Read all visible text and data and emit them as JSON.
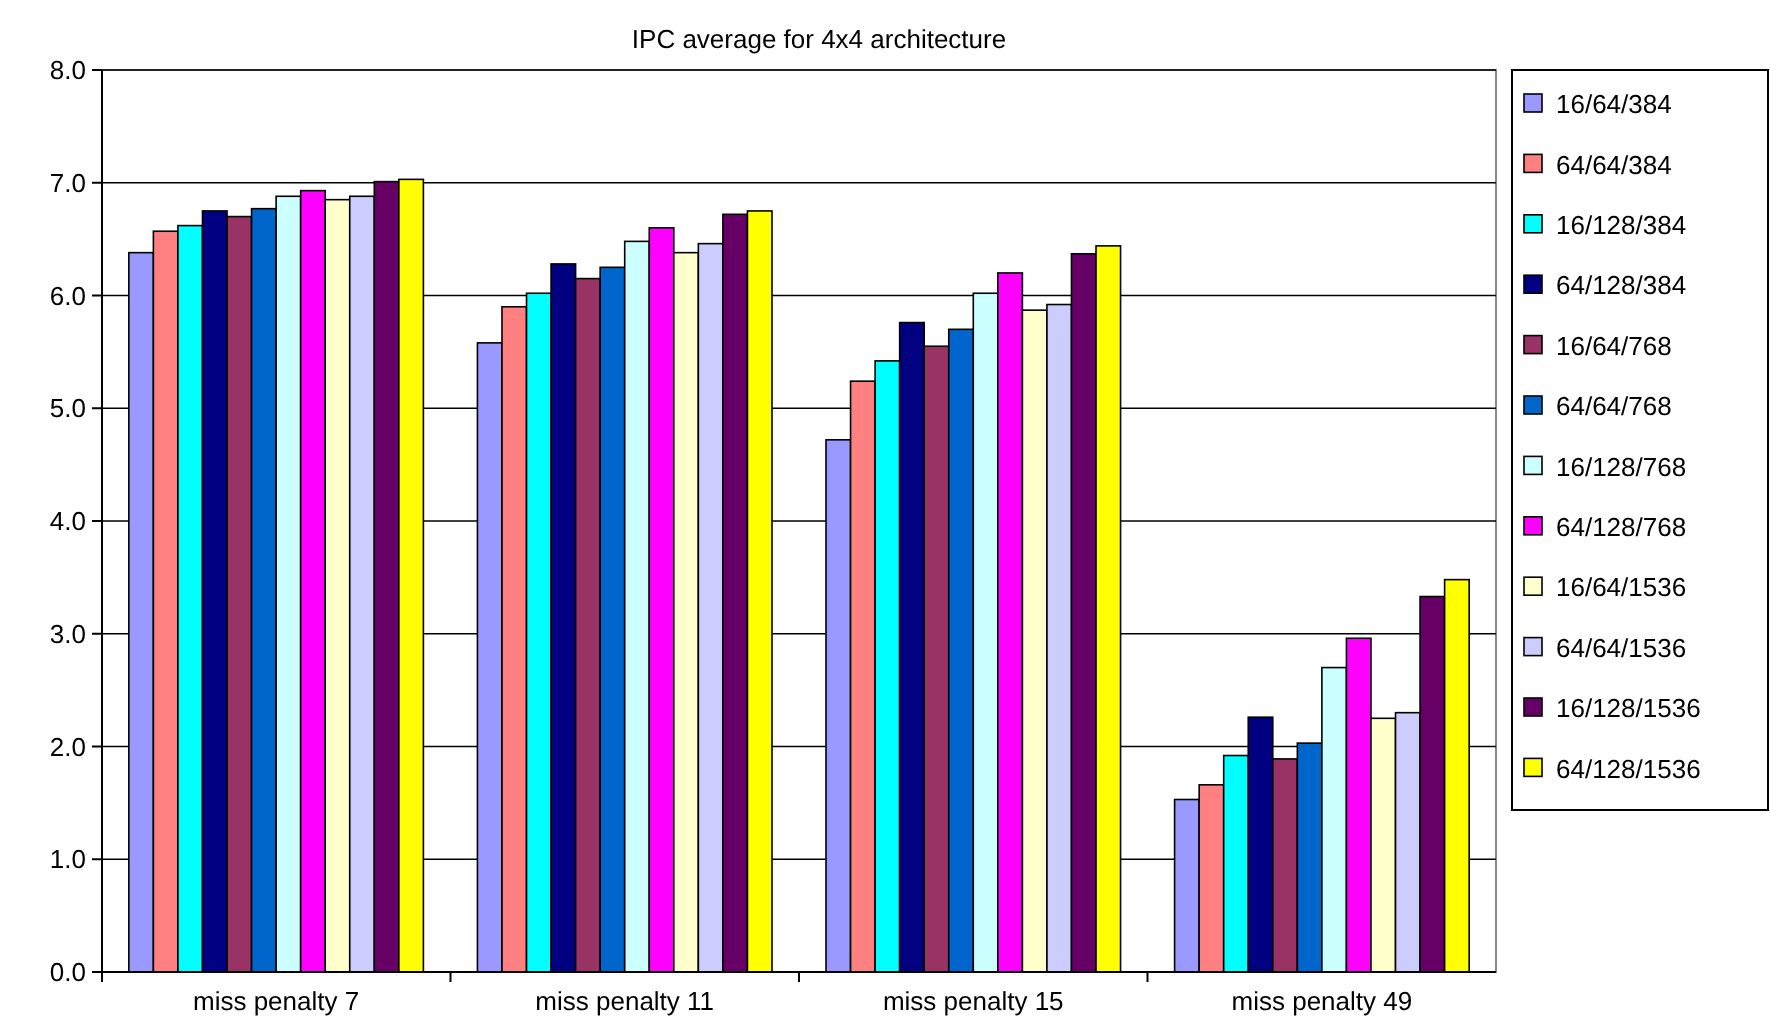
{
  "chart_data": {
    "type": "bar",
    "title": "IPC average for 4x4 architecture",
    "categories": [
      "miss penalty 7",
      "miss penalty 11",
      "miss penalty 15",
      "miss penalty 49"
    ],
    "series": [
      {
        "name": "16/64/384",
        "color": "#9999ff",
        "values": [
          6.38,
          5.58,
          4.72,
          1.53
        ]
      },
      {
        "name": "64/64/384",
        "color": "#ff8080",
        "values": [
          6.57,
          5.9,
          5.24,
          1.66
        ]
      },
      {
        "name": "16/128/384",
        "color": "#00ffff",
        "values": [
          6.62,
          6.02,
          5.42,
          1.92
        ]
      },
      {
        "name": "64/128/384",
        "color": "#000080",
        "values": [
          6.75,
          6.28,
          5.76,
          2.26
        ]
      },
      {
        "name": "16/64/768",
        "color": "#993366",
        "values": [
          6.7,
          6.15,
          5.55,
          1.89
        ]
      },
      {
        "name": "64/64/768",
        "color": "#0066cc",
        "values": [
          6.77,
          6.25,
          5.7,
          2.03
        ]
      },
      {
        "name": "16/128/768",
        "color": "#ccffff",
        "values": [
          6.88,
          6.48,
          6.02,
          2.7
        ]
      },
      {
        "name": "64/128/768",
        "color": "#ff00ff",
        "values": [
          6.93,
          6.6,
          6.2,
          2.96
        ]
      },
      {
        "name": "16/64/1536",
        "color": "#ffffcc",
        "values": [
          6.85,
          6.38,
          5.87,
          2.25
        ]
      },
      {
        "name": "64/64/1536",
        "color": "#ccccff",
        "values": [
          6.88,
          6.46,
          5.92,
          2.3
        ]
      },
      {
        "name": "16/128/1536",
        "color": "#660066",
        "values": [
          7.01,
          6.72,
          6.37,
          3.33
        ]
      },
      {
        "name": "64/128/1536",
        "color": "#ffff00",
        "values": [
          7.03,
          6.75,
          6.44,
          3.48
        ]
      }
    ],
    "ylim": [
      0,
      8
    ],
    "yticks": [
      {
        "value": 0,
        "label": "0.0"
      },
      {
        "value": 1,
        "label": "1.0"
      },
      {
        "value": 2,
        "label": "2.0"
      },
      {
        "value": 3,
        "label": "3.0"
      },
      {
        "value": 4,
        "label": "4.0"
      },
      {
        "value": 5,
        "label": "5.0"
      },
      {
        "value": 6,
        "label": "6.0"
      },
      {
        "value": 7,
        "label": "7.0"
      },
      {
        "value": 8,
        "label": "8.0"
      }
    ],
    "grid": "y",
    "legend": "right"
  }
}
